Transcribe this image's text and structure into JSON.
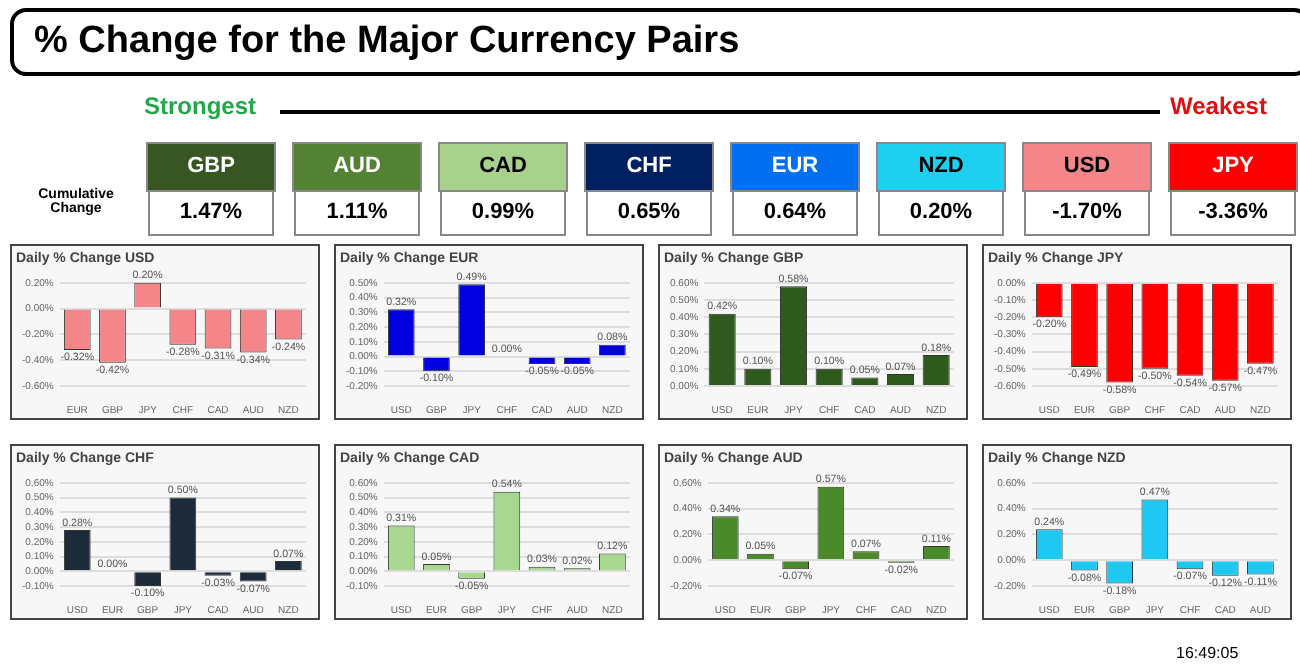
{
  "chart_data": [
    {
      "type": "other",
      "title": "% Change for the Major Currency Pairs",
      "categories": [
        "GBP",
        "AUD",
        "CAD",
        "CHF",
        "EUR",
        "NZD",
        "USD",
        "JPY"
      ],
      "value_labels": [
        "1.47%",
        "1.11%",
        "0.99%",
        "0.65%",
        "0.64%",
        "0.20%",
        "-1.70%",
        "-3.36%"
      ],
      "colors": [
        "#375623",
        "#548235",
        "#a9d18e",
        "#002060",
        "#0070f0",
        "#1fcff0",
        "#f4868a",
        "#ff0000"
      ],
      "annotations": [
        "Strongest",
        "Weakest",
        "Cumulative Change",
        "16:49:05"
      ]
    },
    {
      "type": "bar",
      "title": "Daily % Change USD",
      "categories": [
        "EUR",
        "GBP",
        "JPY",
        "CHF",
        "CAD",
        "AUD",
        "NZD"
      ],
      "values": [
        -0.32,
        -0.42,
        0.2,
        -0.28,
        -0.31,
        -0.34,
        -0.24
      ],
      "value_labels": [
        "-0.32%",
        "-0.42%",
        "0.20%",
        "-0.28%",
        "-0.31%",
        "-0.34%",
        "-0.24%"
      ],
      "color": "#f4868a",
      "ylim": [
        -0.6,
        0.2
      ],
      "yticks": [
        {
          "value": -0.6,
          "label": "-0.60%"
        },
        {
          "value": -0.4,
          "label": "-0.40%"
        },
        {
          "value": -0.2,
          "label": "-0.20%"
        },
        {
          "value": 0,
          "label": "0.00%"
        },
        {
          "value": 0.2,
          "label": "0.20%"
        }
      ],
      "grid": "y"
    },
    {
      "type": "bar",
      "title": "Daily % Change EUR",
      "categories": [
        "USD",
        "GBP",
        "JPY",
        "CHF",
        "CAD",
        "AUD",
        "NZD"
      ],
      "values": [
        0.32,
        -0.1,
        0.49,
        0.0,
        -0.05,
        -0.05,
        0.08
      ],
      "value_labels": [
        "0.32%",
        "-0.10%",
        "0.49%",
        "0.00%",
        "-0.05%",
        "-0.05%",
        "0.08%"
      ],
      "color": "#0000e0",
      "ylim": [
        -0.2,
        0.5
      ],
      "yticks": [
        {
          "value": -0.2,
          "label": "-0.20%"
        },
        {
          "value": -0.1,
          "label": "-0.10%"
        },
        {
          "value": 0,
          "label": "0.00%"
        },
        {
          "value": 0.1,
          "label": "0.10%"
        },
        {
          "value": 0.2,
          "label": "0.20%"
        },
        {
          "value": 0.3,
          "label": "0.30%"
        },
        {
          "value": 0.4,
          "label": "0.40%"
        },
        {
          "value": 0.5,
          "label": "0.50%"
        }
      ],
      "grid": "y"
    },
    {
      "type": "bar",
      "title": "Daily % Change GBP",
      "categories": [
        "USD",
        "EUR",
        "JPY",
        "CHF",
        "CAD",
        "AUD",
        "NZD"
      ],
      "values": [
        0.42,
        0.1,
        0.58,
        0.1,
        0.05,
        0.07,
        0.18
      ],
      "value_labels": [
        "0.42%",
        "0.10%",
        "0.58%",
        "0.10%",
        "0.05%",
        "0.07%",
        "0.18%"
      ],
      "color": "#2f5a1e",
      "ylim": [
        0,
        0.6
      ],
      "yticks": [
        {
          "value": 0,
          "label": "0.00%"
        },
        {
          "value": 0.1,
          "label": "0.10%"
        },
        {
          "value": 0.2,
          "label": "0.20%"
        },
        {
          "value": 0.3,
          "label": "0.30%"
        },
        {
          "value": 0.4,
          "label": "0.40%"
        },
        {
          "value": 0.5,
          "label": "0.50%"
        },
        {
          "value": 0.6,
          "label": "0.60%"
        }
      ],
      "grid": "y"
    },
    {
      "type": "bar",
      "title": "Daily % Change JPY",
      "categories": [
        "USD",
        "EUR",
        "GBP",
        "CHF",
        "CAD",
        "AUD",
        "NZD"
      ],
      "values": [
        -0.2,
        -0.49,
        -0.58,
        -0.5,
        -0.54,
        -0.57,
        -0.47
      ],
      "value_labels": [
        "-0.20%",
        "-0.49%",
        "-0.58%",
        "-0.50%",
        "-0.54%",
        "-0.57%",
        "-0.47%"
      ],
      "color": "#ff0000",
      "ylim": [
        -0.6,
        0
      ],
      "yticks": [
        {
          "value": -0.6,
          "label": "-0.60%"
        },
        {
          "value": -0.5,
          "label": "-0.50%"
        },
        {
          "value": -0.4,
          "label": "-0.40%"
        },
        {
          "value": -0.3,
          "label": "-0.30%"
        },
        {
          "value": -0.2,
          "label": "-0.20%"
        },
        {
          "value": -0.1,
          "label": "-0.10%"
        },
        {
          "value": 0,
          "label": "0.00%"
        }
      ],
      "grid": "y"
    },
    {
      "type": "bar",
      "title": "Daily % Change CHF",
      "categories": [
        "USD",
        "EUR",
        "GBP",
        "JPY",
        "CAD",
        "AUD",
        "NZD"
      ],
      "values": [
        0.28,
        0.0,
        -0.1,
        0.5,
        -0.03,
        -0.07,
        0.07
      ],
      "value_labels": [
        "0.28%",
        "0.00%",
        "-0.10%",
        "0.50%",
        "-0.03%",
        "-0.07%",
        "0.07%"
      ],
      "color": "#1c2a3a",
      "ylim": [
        -0.1,
        0.6
      ],
      "yticks": [
        {
          "value": -0.1,
          "label": "-0.10%"
        },
        {
          "value": 0,
          "label": "0.00%"
        },
        {
          "value": 0.1,
          "label": "0.10%"
        },
        {
          "value": 0.2,
          "label": "0.20%"
        },
        {
          "value": 0.3,
          "label": "0.30%"
        },
        {
          "value": 0.4,
          "label": "0.40%"
        },
        {
          "value": 0.5,
          "label": "0.50%"
        },
        {
          "value": 0.6,
          "label": "0.60%"
        }
      ],
      "grid": "y"
    },
    {
      "type": "bar",
      "title": "Daily % Change CAD",
      "categories": [
        "USD",
        "EUR",
        "GBP",
        "JPY",
        "CHF",
        "AUD",
        "NZD"
      ],
      "values": [
        0.31,
        0.05,
        -0.05,
        0.54,
        0.03,
        0.02,
        0.12
      ],
      "value_labels": [
        "0.31%",
        "0.05%",
        "-0.05%",
        "0.54%",
        "0.03%",
        "0.02%",
        "0.12%"
      ],
      "color": "#a8d890",
      "ylim": [
        -0.1,
        0.6
      ],
      "yticks": [
        {
          "value": -0.1,
          "label": "-0.10%"
        },
        {
          "value": 0,
          "label": "0.00%"
        },
        {
          "value": 0.1,
          "label": "0.10%"
        },
        {
          "value": 0.2,
          "label": "0.20%"
        },
        {
          "value": 0.3,
          "label": "0.30%"
        },
        {
          "value": 0.4,
          "label": "0.40%"
        },
        {
          "value": 0.5,
          "label": "0.50%"
        },
        {
          "value": 0.6,
          "label": "0.60%"
        }
      ],
      "grid": "y"
    },
    {
      "type": "bar",
      "title": "Daily % Change AUD",
      "categories": [
        "USD",
        "EUR",
        "GBP",
        "JPY",
        "CHF",
        "CAD",
        "NZD"
      ],
      "values": [
        0.34,
        0.05,
        -0.07,
        0.57,
        0.07,
        -0.02,
        0.11
      ],
      "value_labels": [
        "0.34%",
        "0.05%",
        "-0.07%",
        "0.57%",
        "0.07%",
        "-0.02%",
        "0.11%"
      ],
      "color": "#4a8a2a",
      "ylim": [
        -0.2,
        0.6
      ],
      "yticks": [
        {
          "value": -0.2,
          "label": "-0.20%"
        },
        {
          "value": 0,
          "label": "0.00%"
        },
        {
          "value": 0.2,
          "label": "0.20%"
        },
        {
          "value": 0.4,
          "label": "0.40%"
        },
        {
          "value": 0.6,
          "label": "0.60%"
        }
      ],
      "grid": "y"
    },
    {
      "type": "bar",
      "title": "Daily % Change NZD",
      "categories": [
        "USD",
        "EUR",
        "GBP",
        "JPY",
        "CHF",
        "CAD",
        "AUD"
      ],
      "values": [
        0.24,
        -0.08,
        -0.18,
        0.47,
        -0.07,
        -0.12,
        -0.11
      ],
      "value_labels": [
        "0.24%",
        "-0.08%",
        "-0.18%",
        "0.47%",
        "-0.07%",
        "-0.12%",
        "-0.11%"
      ],
      "color": "#1ec8f0",
      "ylim": [
        -0.2,
        0.6
      ],
      "yticks": [
        {
          "value": -0.2,
          "label": "-0.20%"
        },
        {
          "value": 0,
          "label": "0.00%"
        },
        {
          "value": 0.2,
          "label": "0.20%"
        },
        {
          "value": 0.4,
          "label": "0.40%"
        },
        {
          "value": 0.6,
          "label": "0.60%"
        }
      ],
      "grid": "y"
    }
  ]
}
